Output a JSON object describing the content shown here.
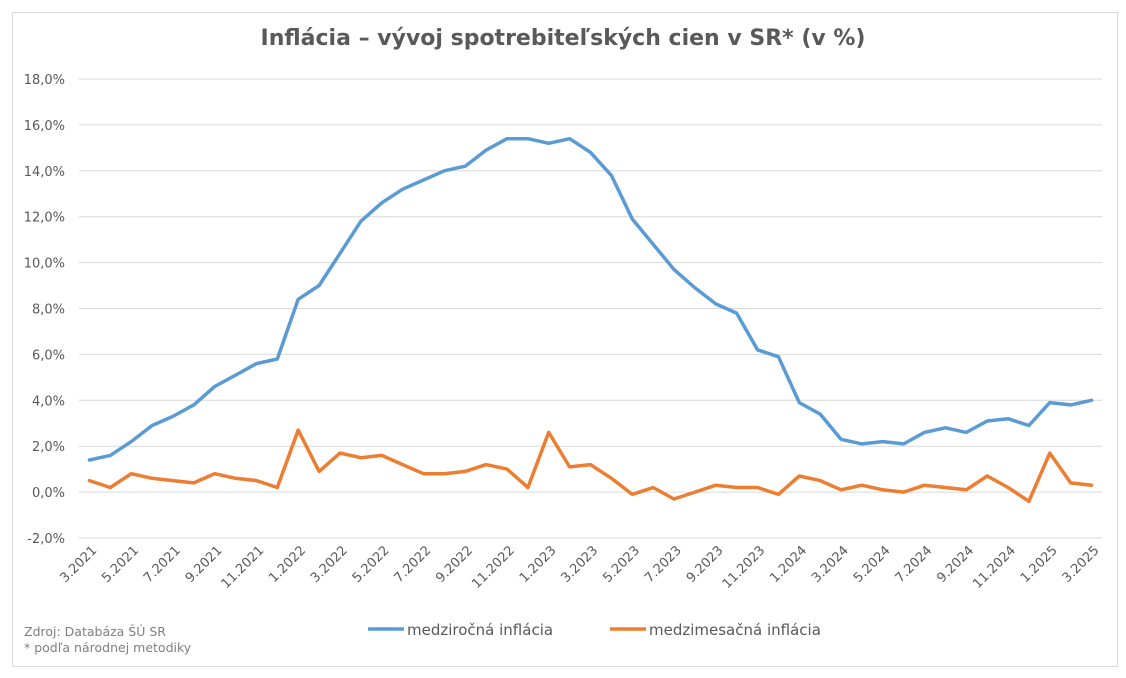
{
  "chart_data": {
    "type": "line",
    "title": "Inflácia –  vývoj spotrebiteľských cien v SR* (v %)",
    "x": [
      "3.2021",
      "4.2021",
      "5.2021",
      "6.2021",
      "7.2021",
      "8.2021",
      "9.2021",
      "10.2021",
      "11.2021",
      "12.2021",
      "1.2022",
      "2.2022",
      "3.2022",
      "4.2022",
      "5.2022",
      "6.2022",
      "7.2022",
      "8.2022",
      "9.2022",
      "10.2022",
      "11.2022",
      "12.2022",
      "1.2023",
      "2.2023",
      "3.2023",
      "4.2023",
      "5.2023",
      "6.2023",
      "7.2023",
      "8.2023",
      "9.2023",
      "10.2023",
      "11.2023",
      "12.2023",
      "1.2024",
      "2.2024",
      "3.2024",
      "4.2024",
      "5.2024",
      "6.2024",
      "7.2024",
      "8.2024",
      "9.2024",
      "10.2024",
      "11.2024",
      "12.2024",
      "1.2025",
      "2.2025",
      "3.2025"
    ],
    "x_tick_labels": [
      "3.2021",
      "5.2021",
      "7.2021",
      "9.2021",
      "11.2021",
      "1.2022",
      "3.2022",
      "5.2022",
      "7.2022",
      "9.2022",
      "11.2022",
      "1.2023",
      "3.2023",
      "5.2023",
      "7.2023",
      "9.2023",
      "11.2023",
      "1.2024",
      "3.2024",
      "5.2024",
      "7.2024",
      "9.2024",
      "11.2024",
      "1.2025",
      "3.2025"
    ],
    "y_tick_labels": [
      "18,0%",
      "16,0%",
      "14,0%",
      "12,0%",
      "10,0%",
      "8,0%",
      "6,0%",
      "4,0%",
      "2,0%",
      "0,0%",
      "-2,0%"
    ],
    "ylim": [
      -2,
      18
    ],
    "grid": true,
    "legend_position": "bottom",
    "series": [
      {
        "name": "medziročná inflácia",
        "color": "#5b9bd5",
        "values": [
          1.4,
          1.6,
          2.2,
          2.9,
          3.3,
          3.8,
          4.6,
          5.1,
          5.6,
          5.8,
          8.4,
          9.0,
          10.4,
          11.8,
          12.6,
          13.2,
          13.6,
          14.0,
          14.2,
          14.9,
          15.4,
          15.4,
          15.2,
          15.4,
          14.8,
          13.8,
          11.9,
          10.8,
          9.7,
          8.9,
          8.2,
          7.8,
          6.2,
          5.9,
          3.9,
          3.4,
          2.3,
          2.1,
          2.2,
          2.1,
          2.6,
          2.8,
          2.6,
          3.1,
          3.2,
          2.9,
          3.9,
          3.8,
          4.0
        ]
      },
      {
        "name": "medzimesačná inflácia",
        "color": "#ed7d31",
        "values": [
          0.5,
          0.2,
          0.8,
          0.6,
          0.5,
          0.4,
          0.8,
          0.6,
          0.5,
          0.2,
          2.7,
          0.9,
          1.7,
          1.5,
          1.6,
          1.2,
          0.8,
          0.8,
          0.9,
          1.2,
          1.0,
          0.2,
          2.6,
          1.1,
          1.2,
          0.6,
          -0.1,
          0.2,
          -0.3,
          0.0,
          0.3,
          0.2,
          0.2,
          -0.1,
          0.7,
          0.5,
          0.1,
          0.3,
          0.1,
          0.0,
          0.3,
          0.2,
          0.1,
          0.7,
          0.2,
          -0.4,
          1.7,
          0.4,
          0.3
        ]
      }
    ]
  },
  "source": "Zdroj: Databáza ŠÚ SR",
  "note": "* podľa národnej metodiky"
}
